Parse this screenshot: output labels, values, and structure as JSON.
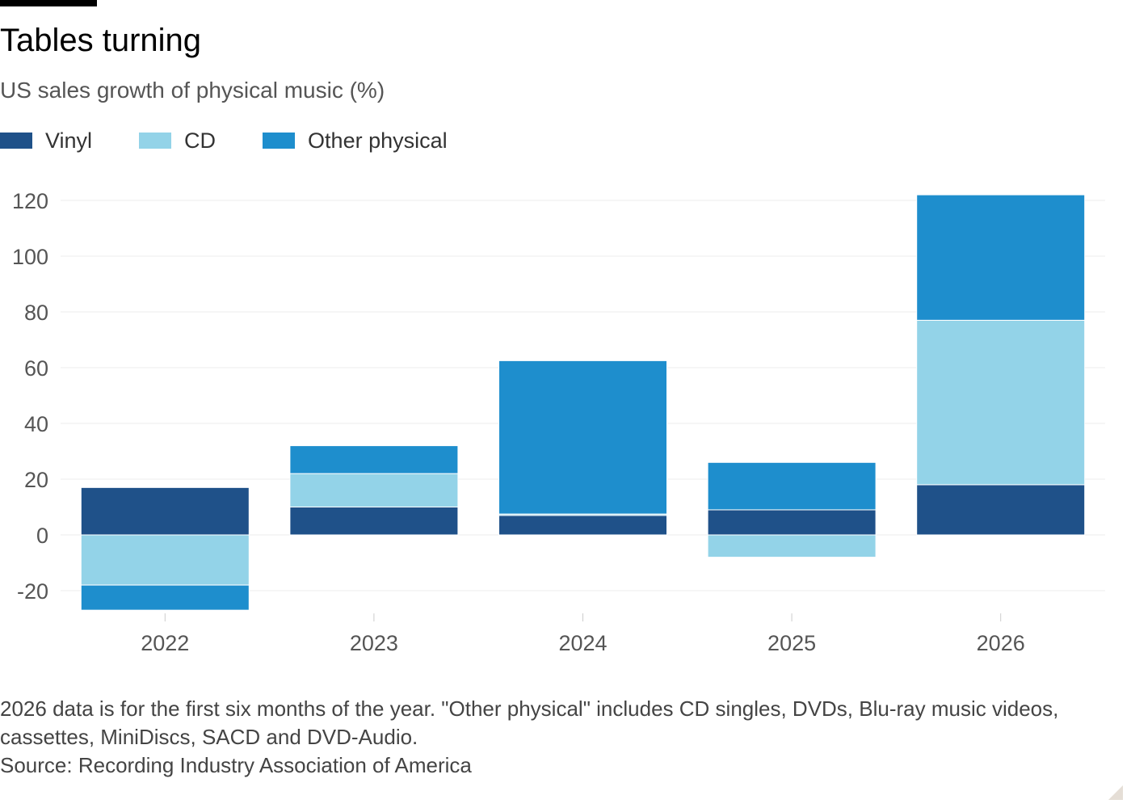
{
  "title": "Tables turning",
  "subtitle": "US sales growth of physical music (%)",
  "legend": [
    {
      "label": "Vinyl",
      "color": "#1f5189"
    },
    {
      "label": "CD",
      "color": "#93d3e8"
    },
    {
      "label": "Other physical",
      "color": "#1e8ecd"
    }
  ],
  "notes": "2026 data is for the first six months of the year. \"Other physical\" includes CD singles, DVDs, Blu-ray music videos, cassettes, MiniDiscs, SACD and DVD-Audio.",
  "source": "Source: Recording Industry Association of America",
  "chart_data": {
    "type": "bar",
    "stacked": true,
    "categories": [
      "2022",
      "2023",
      "2024",
      "2025",
      "2026"
    ],
    "series": [
      {
        "name": "Vinyl",
        "color": "#1f5189",
        "values": [
          17,
          10,
          7,
          9,
          18
        ]
      },
      {
        "name": "CD",
        "color": "#93d3e8",
        "values": [
          -18,
          12,
          0.5,
          -8,
          59
        ]
      },
      {
        "name": "Other physical",
        "color": "#1e8ecd",
        "values": [
          -9,
          10,
          55,
          17,
          45
        ]
      }
    ],
    "yticks": [
      "-20",
      "0",
      "20",
      "40",
      "60",
      "80",
      "100",
      "120"
    ],
    "ylim": [
      -27,
      127
    ],
    "grid": true,
    "legend_position": "top-left"
  }
}
